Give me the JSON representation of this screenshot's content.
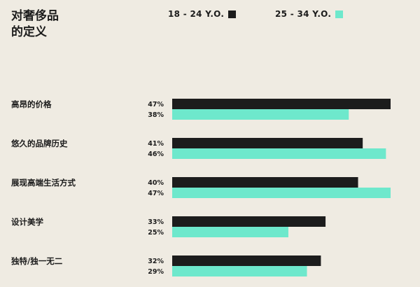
{
  "title_lines": [
    "对奢侈品",
    "的定义"
  ],
  "colors": {
    "series_1": "#1c1c1c",
    "series_2": "#6ee8cc",
    "background": "#efebe2"
  },
  "chart_data": {
    "type": "bar",
    "orientation": "horizontal",
    "title": "对奢侈品的定义",
    "categories": [
      "高昂的价格",
      "悠久的品牌历史",
      "展现高端生活方式",
      "设计美学",
      "独特/独一无二"
    ],
    "series": [
      {
        "name": "18 - 24 Y.O.",
        "values": [
          47,
          41,
          40,
          33,
          32
        ],
        "labels": [
          "47%",
          "41%",
          "40%",
          "33%",
          "32%"
        ]
      },
      {
        "name": "25 - 34 Y.O.",
        "values": [
          38,
          46,
          47,
          25,
          29
        ],
        "labels": [
          "38%",
          "46%",
          "47%",
          "25%",
          "29%"
        ]
      }
    ],
    "xlim": [
      0,
      47
    ],
    "legend_position": "top",
    "grid": false
  }
}
